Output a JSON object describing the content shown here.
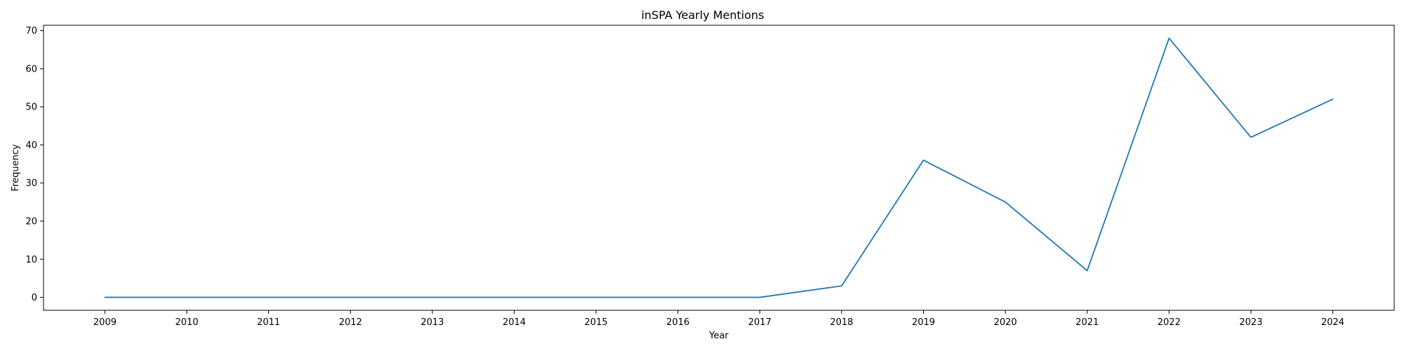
{
  "chart_data": {
    "type": "line",
    "title": "inSPA Yearly Mentions",
    "xlabel": "Year",
    "ylabel": "Frequency",
    "x": [
      2009,
      2010,
      2011,
      2012,
      2013,
      2014,
      2015,
      2016,
      2017,
      2018,
      2019,
      2020,
      2021,
      2022,
      2023,
      2024
    ],
    "series": [
      {
        "values": [
          0,
          0,
          0,
          0,
          0,
          0,
          0,
          0,
          0,
          3,
          36,
          25,
          7,
          68,
          42,
          52
        ],
        "color": "#1f77b4"
      }
    ],
    "xlim": [
      2008.25,
      2024.75
    ],
    "ylim": [
      -3.4,
      71.4
    ],
    "yticks": [
      0,
      10,
      20,
      30,
      40,
      50,
      60,
      70
    ],
    "grid": false,
    "legend": "none"
  }
}
